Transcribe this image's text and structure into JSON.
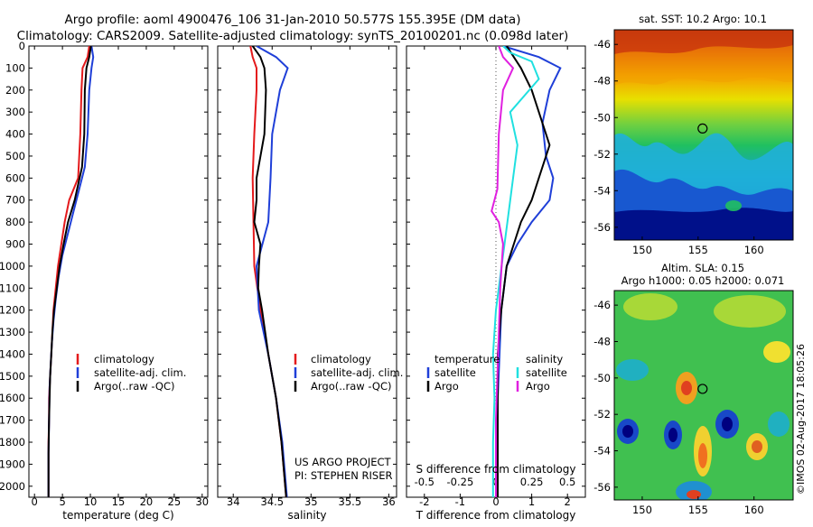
{
  "header": {
    "line1": "Argo profile: aoml 4900476_106 31-Jan-2010 50.577S 155.395E (DM data)",
    "line2": "Climatology: CARS2009. Satellite-adjusted climatology: synTS_20100201.nc (0.098d later)"
  },
  "colors": {
    "climatology": "#e41a1c",
    "satellite": "#1f3fd8",
    "argo": "#000000",
    "argo_salinity_diff": "#e020e0",
    "satellite_salinity_diff": "#20e0e0"
  },
  "credits": {
    "project": "US ARGO PROJECT",
    "pi": "PI: STEPHEN RISER",
    "stamp": "©IMOS 02-Aug-2017 18:05:26"
  },
  "chart_data": [
    {
      "type": "line",
      "id": "temperature",
      "xlabel": "temperature (deg C)",
      "xlim": [
        -1,
        31
      ],
      "xticks": [
        0,
        5,
        10,
        15,
        20,
        25,
        30
      ],
      "ylim": [
        2050,
        0
      ],
      "yticks": [
        0,
        100,
        200,
        300,
        400,
        500,
        600,
        700,
        800,
        900,
        1000,
        1100,
        1200,
        1300,
        1400,
        1500,
        1600,
        1700,
        1800,
        1900,
        2000
      ],
      "legend": [
        "climatology",
        "satellite-adj. clim.",
        "Argo(..raw -QC)"
      ],
      "series": [
        {
          "name": "climatology",
          "color_key": "climatology",
          "points": [
            [
              9.8,
              0
            ],
            [
              9.5,
              50
            ],
            [
              8.6,
              100
            ],
            [
              8.4,
              200
            ],
            [
              8.2,
              400
            ],
            [
              7.8,
              600
            ],
            [
              6.2,
              700
            ],
            [
              5.4,
              800
            ],
            [
              4.8,
              900
            ],
            [
              4.2,
              1000
            ],
            [
              3.8,
              1100
            ],
            [
              3.4,
              1200
            ],
            [
              3.2,
              1300
            ],
            [
              3.0,
              1400
            ],
            [
              2.8,
              1500
            ],
            [
              2.6,
              1600
            ],
            [
              2.6,
              1700
            ],
            [
              2.5,
              1800
            ],
            [
              2.5,
              1900
            ],
            [
              2.5,
              2050
            ]
          ]
        },
        {
          "name": "satellite-adj. clim.",
          "color_key": "satellite",
          "points": [
            [
              10.2,
              0
            ],
            [
              10.5,
              50
            ],
            [
              10.2,
              100
            ],
            [
              9.8,
              200
            ],
            [
              9.5,
              400
            ],
            [
              9.0,
              550
            ],
            [
              8.0,
              650
            ],
            [
              7.0,
              750
            ],
            [
              6.0,
              850
            ],
            [
              5.0,
              950
            ],
            [
              4.3,
              1050
            ],
            [
              3.8,
              1150
            ],
            [
              3.4,
              1250
            ],
            [
              3.1,
              1350
            ],
            [
              2.9,
              1450
            ],
            [
              2.7,
              1550
            ],
            [
              2.6,
              1700
            ],
            [
              2.5,
              1850
            ],
            [
              2.5,
              2050
            ]
          ]
        },
        {
          "name": "Argo(..raw -QC)",
          "color_key": "argo",
          "points": [
            [
              10.1,
              0
            ],
            [
              9.8,
              50
            ],
            [
              9.3,
              100
            ],
            [
              9.0,
              200
            ],
            [
              8.9,
              400
            ],
            [
              8.5,
              550
            ],
            [
              7.2,
              700
            ],
            [
              6.0,
              800
            ],
            [
              5.2,
              900
            ],
            [
              4.5,
              1000
            ],
            [
              4.0,
              1100
            ],
            [
              3.5,
              1200
            ],
            [
              3.2,
              1300
            ],
            [
              3.0,
              1400
            ],
            [
              2.8,
              1500
            ],
            [
              2.7,
              1600
            ],
            [
              2.6,
              1700
            ],
            [
              2.5,
              1850
            ],
            [
              2.5,
              2050
            ]
          ]
        }
      ]
    },
    {
      "type": "line",
      "id": "salinity",
      "xlabel": "salinity",
      "xlim": [
        33.8,
        36.1
      ],
      "xticks": [
        34,
        34.5,
        35,
        35.5,
        36
      ],
      "ylim": [
        2050,
        0
      ],
      "legend": [
        "climatology",
        "satellite-adj. clim.",
        "Argo(..raw -QC)"
      ],
      "series": [
        {
          "name": "climatology",
          "color_key": "climatology",
          "points": [
            [
              34.22,
              0
            ],
            [
              34.25,
              50
            ],
            [
              34.3,
              100
            ],
            [
              34.3,
              200
            ],
            [
              34.27,
              400
            ],
            [
              34.25,
              600
            ],
            [
              34.26,
              800
            ],
            [
              34.27,
              1000
            ],
            [
              34.35,
              1200
            ],
            [
              34.45,
              1400
            ],
            [
              34.55,
              1600
            ],
            [
              34.62,
              1800
            ],
            [
              34.68,
              2050
            ]
          ]
        },
        {
          "name": "satellite-adj. clim.",
          "color_key": "satellite",
          "points": [
            [
              34.3,
              0
            ],
            [
              34.55,
              50
            ],
            [
              34.7,
              100
            ],
            [
              34.6,
              200
            ],
            [
              34.5,
              400
            ],
            [
              34.48,
              600
            ],
            [
              34.45,
              800
            ],
            [
              34.3,
              1000
            ],
            [
              34.33,
              1200
            ],
            [
              34.45,
              1400
            ],
            [
              34.55,
              1600
            ],
            [
              34.63,
              1800
            ],
            [
              34.69,
              2050
            ]
          ]
        },
        {
          "name": "Argo(..raw -QC)",
          "color_key": "argo",
          "points": [
            [
              34.25,
              0
            ],
            [
              34.35,
              50
            ],
            [
              34.4,
              100
            ],
            [
              34.42,
              200
            ],
            [
              34.4,
              400
            ],
            [
              34.3,
              600
            ],
            [
              34.3,
              700
            ],
            [
              34.27,
              800
            ],
            [
              34.35,
              900
            ],
            [
              34.33,
              1000
            ],
            [
              34.32,
              1100
            ],
            [
              34.37,
              1200
            ],
            [
              34.45,
              1400
            ],
            [
              34.55,
              1600
            ],
            [
              34.62,
              1800
            ],
            [
              34.68,
              2050
            ]
          ]
        }
      ]
    },
    {
      "type": "line",
      "id": "differences",
      "xlabel": "T difference from climatology",
      "xlabel2": "S difference from climatology",
      "xlim": [
        -2.5,
        2.5
      ],
      "xticks": [
        -2,
        -1,
        0,
        1,
        2
      ],
      "xticks2_values": [
        -0.5,
        -0.25,
        0,
        0.25,
        0.5
      ],
      "xticks2_labels": [
        "-0.5",
        "-0.25",
        "0",
        "0.25",
        "0.5"
      ],
      "ylim": [
        2050,
        0
      ],
      "legend_headers": [
        "temperature",
        "salinity"
      ],
      "legend": [
        "satellite",
        "Argo",
        "satellite",
        "Argo"
      ],
      "series": [
        {
          "name": "satellite",
          "color_key": "satellite",
          "points": [
            [
              0.2,
              0
            ],
            [
              1.2,
              50
            ],
            [
              1.8,
              100
            ],
            [
              1.5,
              200
            ],
            [
              1.3,
              350
            ],
            [
              1.4,
              500
            ],
            [
              1.6,
              600
            ],
            [
              1.5,
              700
            ],
            [
              1.0,
              800
            ],
            [
              0.6,
              900
            ],
            [
              0.3,
              1000
            ],
            [
              0.15,
              1200
            ],
            [
              0.1,
              1400
            ],
            [
              0.05,
              1600
            ],
            [
              0.05,
              1800
            ],
            [
              0.05,
              2050
            ]
          ]
        },
        {
          "name": "Argo",
          "color_key": "argo",
          "points": [
            [
              0.3,
              0
            ],
            [
              0.5,
              50
            ],
            [
              0.7,
              100
            ],
            [
              1.0,
              200
            ],
            [
              1.3,
              350
            ],
            [
              1.5,
              450
            ],
            [
              1.2,
              600
            ],
            [
              1.0,
              700
            ],
            [
              0.7,
              800
            ],
            [
              0.5,
              900
            ],
            [
              0.3,
              1000
            ],
            [
              0.15,
              1200
            ],
            [
              0.05,
              1400
            ],
            [
              0.05,
              1600
            ],
            [
              0.05,
              1800
            ],
            [
              0.05,
              2050
            ]
          ]
        },
        {
          "name": "satellite (salinity)",
          "color_key": "satellite_salinity_diff",
          "points": [
            [
              0.05,
              0
            ],
            [
              0.1,
              30
            ],
            [
              0.25,
              70
            ],
            [
              0.3,
              150
            ],
            [
              0.1,
              300
            ],
            [
              0.15,
              450
            ],
            [
              0.12,
              600
            ],
            [
              0.08,
              800
            ],
            [
              0.04,
              1000
            ],
            [
              0.0,
              1200
            ],
            [
              -0.02,
              1400
            ],
            [
              -0.01,
              1600
            ],
            [
              -0.02,
              1800
            ],
            [
              -0.02,
              2050
            ]
          ]
        },
        {
          "name": "Argo (salinity)",
          "color_key": "argo_salinity_diff",
          "points": [
            [
              0.02,
              0
            ],
            [
              0.05,
              50
            ],
            [
              0.12,
              100
            ],
            [
              0.05,
              200
            ],
            [
              0.02,
              400
            ],
            [
              0.01,
              650
            ],
            [
              -0.03,
              750
            ],
            [
              0.02,
              800
            ],
            [
              0.05,
              900
            ],
            [
              0.04,
              1000
            ],
            [
              0.03,
              1100
            ],
            [
              0.02,
              1300
            ],
            [
              0.01,
              1500
            ],
            [
              0.0,
              1700
            ],
            [
              0.0,
              2050
            ]
          ]
        }
      ]
    },
    {
      "type": "heatmap",
      "id": "sst_map",
      "title": "sat. SST: 10.2 Argo: 10.1",
      "xlim": [
        147.5,
        163.5
      ],
      "ylim": [
        -56.7,
        -45.2
      ],
      "xticks": [
        150,
        155,
        160
      ],
      "yticks": [
        -46,
        -48,
        -50,
        -52,
        -54,
        -56
      ],
      "argo_position": [
        155.4,
        -50.6
      ]
    },
    {
      "type": "heatmap",
      "id": "sla_map",
      "title": "Altim. SLA: 0.15",
      "subtitle": "Argo h1000: 0.05 h2000: 0.071",
      "xlim": [
        147.5,
        163.5
      ],
      "ylim": [
        -56.7,
        -45.2
      ],
      "xticks": [
        150,
        155,
        160
      ],
      "yticks": [
        -46,
        -48,
        -50,
        -52,
        -54,
        -56
      ],
      "argo_position": [
        155.4,
        -50.6
      ]
    }
  ]
}
